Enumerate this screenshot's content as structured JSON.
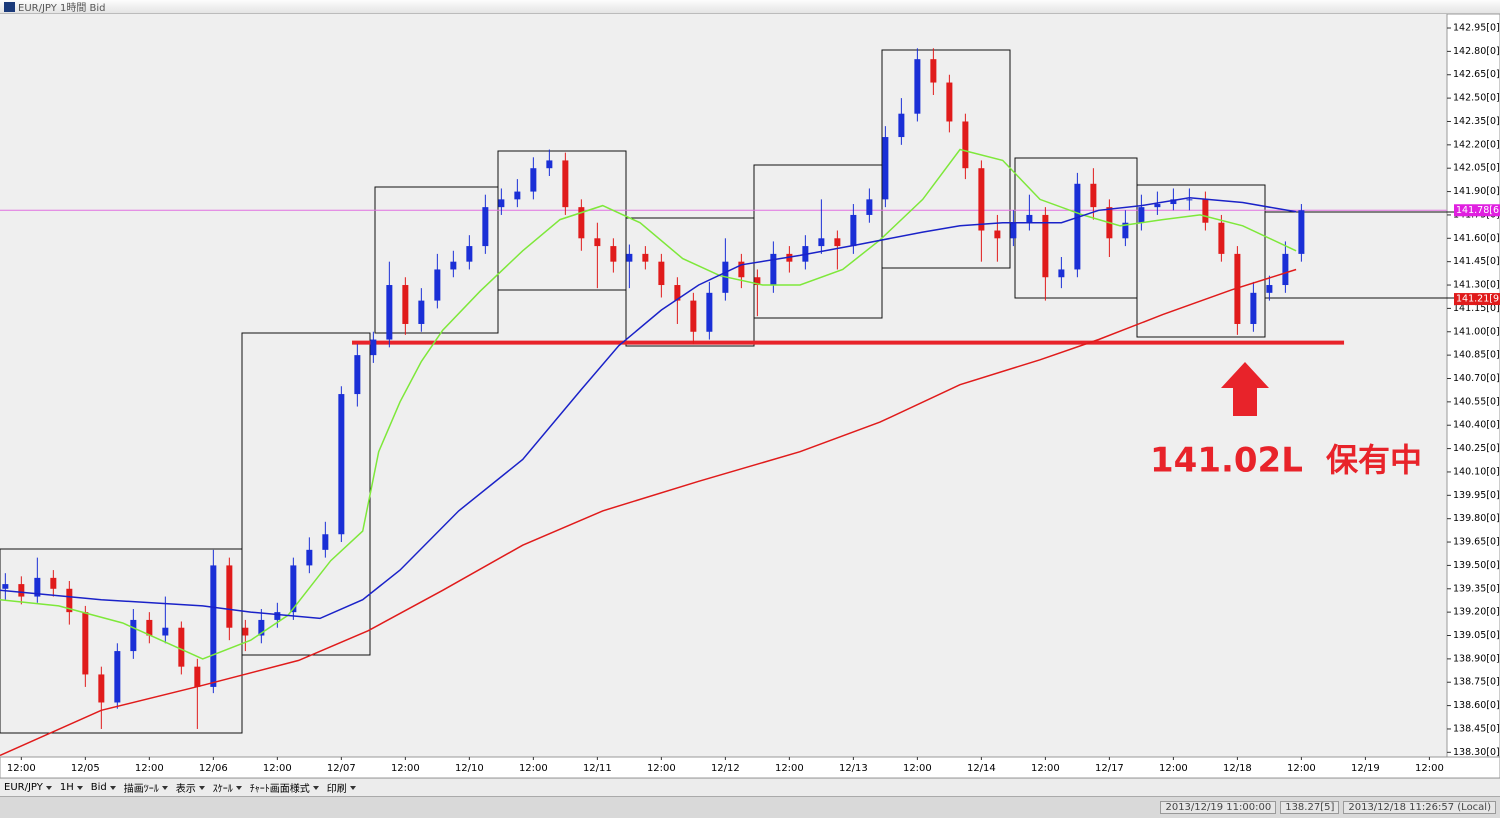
{
  "window": {
    "title": "EUR/JPY 1時間 Bid",
    "toolbar": [
      "EUR/JPY",
      "1H",
      "Bid",
      "描画ﾂｰﾙ",
      "表示",
      "ｽｹｰﾙ",
      "ﾁｬｰﾄ画面様式",
      "印刷"
    ],
    "status": [
      "2013/12/19 11:00:00",
      "138.27[5]",
      "2013/12/18 11:26:57 (Local)"
    ]
  },
  "chart_data": {
    "type": "candlestick",
    "xlim": [
      0,
      271.3
    ],
    "ylim": [
      138.27,
      143.04
    ],
    "up_color": "#1a2fd6",
    "down_color": "#e01b1b",
    "yticks": [
      {
        "value": 138.3,
        "label": "138.30[0]"
      },
      {
        "value": 138.45,
        "label": "138.45[0]"
      },
      {
        "value": 138.6,
        "label": "138.60[0]"
      },
      {
        "value": 138.75,
        "label": "138.75[0]"
      },
      {
        "value": 138.9,
        "label": "138.90[0]"
      },
      {
        "value": 139.05,
        "label": "139.05[0]"
      },
      {
        "value": 139.2,
        "label": "139.20[0]"
      },
      {
        "value": 139.35,
        "label": "139.35[0]"
      },
      {
        "value": 139.5,
        "label": "139.50[0]"
      },
      {
        "value": 139.65,
        "label": "139.65[0]"
      },
      {
        "value": 139.8,
        "label": "139.80[0]"
      },
      {
        "value": 139.95,
        "label": "139.95[0]"
      },
      {
        "value": 140.1,
        "label": "140.10[0]"
      },
      {
        "value": 140.25,
        "label": "140.25[0]"
      },
      {
        "value": 140.4,
        "label": "140.40[0]"
      },
      {
        "value": 140.55,
        "label": "140.55[0]"
      },
      {
        "value": 140.7,
        "label": "140.70[0]"
      },
      {
        "value": 140.85,
        "label": "140.85[0]"
      },
      {
        "value": 141.0,
        "label": "141.00[0]"
      },
      {
        "value": 141.15,
        "label": "141.15[0]"
      },
      {
        "value": 141.3,
        "label": "141.30[0]"
      },
      {
        "value": 141.45,
        "label": "141.45[0]"
      },
      {
        "value": 141.6,
        "label": "141.60[0]"
      },
      {
        "value": 141.75,
        "label": "141.75[0]"
      },
      {
        "value": 141.9,
        "label": "141.90[0]"
      },
      {
        "value": 142.05,
        "label": "142.05[0]"
      },
      {
        "value": 142.2,
        "label": "142.20[0]"
      },
      {
        "value": 142.35,
        "label": "142.35[0]"
      },
      {
        "value": 142.5,
        "label": "142.50[0]"
      },
      {
        "value": 142.65,
        "label": "142.65[0]"
      },
      {
        "value": 142.8,
        "label": "142.80[0]"
      },
      {
        "value": 142.95,
        "label": "142.95[0]"
      }
    ],
    "xticks": [
      {
        "value": 4,
        "label": "12:00"
      },
      {
        "value": 16,
        "label": "12/05"
      },
      {
        "value": 28,
        "label": "12:00"
      },
      {
        "value": 40,
        "label": "12/06"
      },
      {
        "value": 52,
        "label": "12:00"
      },
      {
        "value": 64,
        "label": "12/07"
      },
      {
        "value": 76,
        "label": "12:00"
      },
      {
        "value": 88,
        "label": "12/10"
      },
      {
        "value": 100,
        "label": "12:00"
      },
      {
        "value": 112,
        "label": "12/11"
      },
      {
        "value": 124,
        "label": "12:00"
      },
      {
        "value": 136,
        "label": "12/12"
      },
      {
        "value": 148,
        "label": "12:00"
      },
      {
        "value": 160,
        "label": "12/13"
      },
      {
        "value": 172,
        "label": "12:00"
      },
      {
        "value": 184,
        "label": "12/14"
      },
      {
        "value": 196,
        "label": "12:00"
      },
      {
        "value": 208,
        "label": "12/17"
      },
      {
        "value": 220,
        "label": "12:00"
      },
      {
        "value": 232,
        "label": "12/18"
      },
      {
        "value": 244,
        "label": "12:00"
      },
      {
        "value": 256,
        "label": "12/19"
      },
      {
        "value": 268,
        "label": "12:00"
      }
    ],
    "candles": {
      "x": [
        1,
        4,
        7,
        10,
        13,
        16,
        19,
        22,
        25,
        28,
        31,
        34,
        37,
        40,
        43,
        46,
        49,
        52,
        55,
        58,
        61,
        64,
        67,
        70,
        73,
        76,
        79,
        82,
        85,
        88,
        91,
        94,
        97,
        100,
        103,
        106,
        109,
        112,
        115,
        118,
        121,
        124,
        127,
        130,
        133,
        136,
        139,
        142,
        145,
        148,
        151,
        154,
        157,
        160,
        163,
        166,
        169,
        172,
        175,
        178,
        181,
        184,
        187,
        190,
        193,
        196,
        199,
        202,
        205,
        208,
        211,
        214,
        217,
        220,
        223,
        226,
        229,
        232,
        235,
        238,
        241,
        244
      ],
      "open": [
        139.35,
        139.38,
        139.3,
        139.42,
        139.35,
        139.2,
        138.8,
        138.62,
        138.95,
        139.15,
        139.05,
        139.1,
        138.85,
        138.72,
        139.5,
        139.1,
        139.05,
        139.15,
        139.2,
        139.5,
        139.6,
        139.7,
        140.6,
        140.85,
        140.95,
        141.3,
        141.05,
        141.2,
        141.4,
        141.45,
        141.55,
        141.8,
        141.85,
        141.9,
        142.05,
        142.1,
        141.8,
        141.6,
        141.55,
        141.45,
        141.5,
        141.45,
        141.3,
        141.2,
        141.0,
        141.25,
        141.45,
        141.35,
        141.3,
        141.5,
        141.45,
        141.55,
        141.6,
        141.55,
        141.75,
        141.85,
        142.25,
        142.4,
        142.75,
        142.6,
        142.35,
        142.05,
        141.65,
        141.6,
        141.7,
        141.75,
        141.35,
        141.4,
        141.95,
        141.8,
        141.6,
        141.7,
        141.8,
        141.82,
        141.85,
        141.85,
        141.7,
        141.5,
        141.05,
        141.25,
        141.3,
        141.5
      ],
      "high": [
        139.45,
        139.43,
        139.55,
        139.47,
        139.4,
        139.24,
        138.85,
        139.0,
        139.22,
        139.2,
        139.3,
        139.14,
        138.9,
        139.6,
        139.55,
        139.15,
        139.22,
        139.26,
        139.55,
        139.68,
        139.78,
        140.65,
        140.92,
        141.0,
        141.45,
        141.35,
        141.28,
        141.5,
        141.52,
        141.62,
        141.88,
        141.92,
        141.98,
        142.12,
        142.17,
        142.15,
        141.85,
        141.7,
        141.6,
        141.56,
        141.55,
        141.5,
        141.35,
        141.25,
        141.32,
        141.6,
        141.5,
        141.4,
        141.58,
        141.55,
        141.62,
        141.85,
        141.65,
        141.82,
        141.92,
        142.32,
        142.5,
        142.82,
        142.82,
        142.65,
        142.4,
        142.1,
        141.75,
        141.78,
        141.88,
        141.8,
        141.48,
        142.02,
        142.05,
        141.85,
        141.78,
        141.88,
        141.9,
        141.92,
        141.92,
        141.9,
        141.75,
        141.55,
        141.32,
        141.36,
        141.58,
        141.82
      ],
      "low": [
        139.28,
        139.25,
        139.26,
        139.3,
        139.12,
        138.72,
        138.45,
        138.58,
        138.9,
        139.0,
        139.0,
        138.8,
        138.45,
        138.68,
        139.02,
        138.95,
        139.0,
        139.1,
        139.15,
        139.45,
        139.55,
        139.65,
        140.52,
        140.8,
        140.9,
        140.98,
        141.0,
        141.15,
        141.35,
        141.4,
        141.5,
        141.75,
        141.8,
        141.85,
        142.0,
        141.75,
        141.52,
        141.28,
        141.38,
        141.28,
        141.4,
        141.22,
        141.05,
        140.92,
        140.95,
        141.2,
        141.28,
        141.1,
        141.25,
        141.38,
        141.4,
        141.5,
        141.4,
        141.5,
        141.7,
        141.8,
        142.2,
        142.35,
        142.52,
        142.28,
        141.98,
        141.45,
        141.45,
        141.55,
        141.65,
        141.2,
        141.28,
        141.35,
        141.72,
        141.48,
        141.55,
        141.65,
        141.75,
        141.78,
        141.78,
        141.65,
        141.45,
        140.98,
        141.0,
        141.2,
        141.25,
        141.45
      ],
      "close": [
        139.38,
        139.3,
        139.42,
        139.35,
        139.2,
        138.8,
        138.62,
        138.95,
        139.15,
        139.05,
        139.1,
        138.85,
        138.72,
        139.5,
        139.1,
        139.05,
        139.15,
        139.2,
        139.5,
        139.6,
        139.7,
        140.6,
        140.85,
        140.95,
        141.3,
        141.05,
        141.2,
        141.4,
        141.45,
        141.55,
        141.8,
        141.85,
        141.9,
        142.05,
        142.1,
        141.8,
        141.6,
        141.55,
        141.45,
        141.5,
        141.45,
        141.3,
        141.2,
        141.0,
        141.25,
        141.45,
        141.35,
        141.3,
        141.5,
        141.45,
        141.55,
        141.6,
        141.55,
        141.75,
        141.85,
        142.25,
        142.4,
        142.75,
        142.6,
        142.35,
        142.05,
        141.65,
        141.6,
        141.7,
        141.75,
        141.35,
        141.4,
        141.95,
        141.8,
        141.6,
        141.7,
        141.8,
        141.82,
        141.85,
        141.85,
        141.7,
        141.5,
        141.05,
        141.25,
        141.3,
        141.5,
        141.78
      ]
    },
    "lines": [
      {
        "color": "#7ee83a",
        "x": [
          0,
          11,
          23,
          38,
          47,
          54,
          62,
          68,
          71,
          75,
          79,
          83,
          90,
          98,
          105,
          113,
          120,
          128,
          135,
          143,
          150,
          158,
          165,
          173,
          180,
          188,
          195,
          203,
          210,
          218,
          225,
          233,
          243
        ],
        "values": [
          139.28,
          139.24,
          139.13,
          138.9,
          139.02,
          139.18,
          139.53,
          139.72,
          140.23,
          140.55,
          140.81,
          141.01,
          141.26,
          141.52,
          141.72,
          141.81,
          141.7,
          141.47,
          141.36,
          141.3,
          141.3,
          141.4,
          141.59,
          141.85,
          142.17,
          142.1,
          141.85,
          141.75,
          141.68,
          141.72,
          141.75,
          141.68,
          141.52
        ]
      },
      {
        "color": "#1a22c8",
        "x": [
          0,
          19,
          38,
          47,
          60,
          68,
          75,
          86,
          98,
          109,
          116,
          124,
          131,
          139,
          150,
          161,
          173,
          180,
          188,
          199,
          206,
          214,
          223,
          233,
          243
        ],
        "values": [
          139.34,
          139.28,
          139.24,
          139.2,
          139.16,
          139.28,
          139.47,
          139.85,
          140.18,
          140.63,
          140.91,
          141.14,
          141.3,
          141.43,
          141.49,
          141.56,
          141.64,
          141.68,
          141.7,
          141.7,
          141.78,
          141.81,
          141.86,
          141.83,
          141.77
        ]
      },
      {
        "color": "#e01b1b",
        "x": [
          0,
          19,
          38,
          56,
          69,
          83,
          98,
          113,
          131,
          150,
          165,
          180,
          195,
          206,
          218,
          231,
          243
        ],
        "values": [
          138.28,
          138.57,
          138.73,
          138.89,
          139.08,
          139.34,
          139.63,
          139.85,
          140.04,
          140.23,
          140.42,
          140.66,
          140.82,
          140.95,
          141.11,
          141.27,
          141.4
        ]
      }
    ],
    "hlines": [
      {
        "value": 141.78,
        "color": "#e070e0"
      },
      {
        "value": 140.93,
        "color": "#e8232a",
        "x": [
          66,
          252
        ]
      }
    ],
    "price_labels": [
      {
        "value": 141.78,
        "label": "141.78[6",
        "color": "#e020e0"
      },
      {
        "value": 141.21,
        "label": "141.21[9",
        "color": "#e01b1b"
      }
    ],
    "annotations": [
      "141.02L",
      "保有中"
    ]
  }
}
